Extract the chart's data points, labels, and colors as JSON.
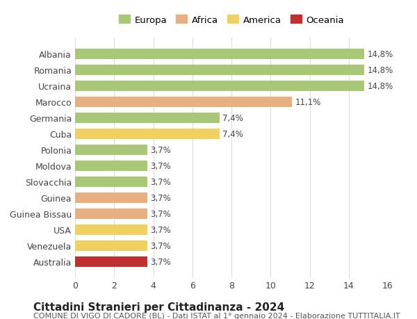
{
  "countries": [
    "Albania",
    "Romania",
    "Ucraina",
    "Marocco",
    "Germania",
    "Cuba",
    "Polonia",
    "Moldova",
    "Slovacchia",
    "Guinea",
    "Guinea Bissau",
    "USA",
    "Venezuela",
    "Australia"
  ],
  "values": [
    14.8,
    14.8,
    14.8,
    11.1,
    7.4,
    7.4,
    3.7,
    3.7,
    3.7,
    3.7,
    3.7,
    3.7,
    3.7,
    3.7
  ],
  "labels": [
    "14,8%",
    "14,8%",
    "14,8%",
    "11,1%",
    "7,4%",
    "7,4%",
    "3,7%",
    "3,7%",
    "3,7%",
    "3,7%",
    "3,7%",
    "3,7%",
    "3,7%",
    "3,7%"
  ],
  "colors": [
    "#a8c878",
    "#a8c878",
    "#a8c878",
    "#e8b080",
    "#a8c878",
    "#f0d060",
    "#a8c878",
    "#a8c878",
    "#a8c878",
    "#e8b080",
    "#e8b080",
    "#f0d060",
    "#f0d060",
    "#c03030"
  ],
  "legend": {
    "Europa": "#a8c878",
    "Africa": "#e8b080",
    "America": "#f0d060",
    "Oceania": "#c03030"
  },
  "xlim": [
    0,
    16
  ],
  "xticks": [
    0,
    2,
    4,
    6,
    8,
    10,
    12,
    14,
    16
  ],
  "title": "Cittadini Stranieri per Cittadinanza - 2024",
  "subtitle": "COMUNE DI VIGO DI CADORE (BL) - Dati ISTAT al 1° gennaio 2024 - Elaborazione TUTTITALIA.IT",
  "bg_color": "#ffffff",
  "grid_color": "#dddddd",
  "bar_height": 0.65,
  "label_fontsize": 8.5,
  "title_fontsize": 11,
  "subtitle_fontsize": 8,
  "ytick_fontsize": 9,
  "xtick_fontsize": 9
}
